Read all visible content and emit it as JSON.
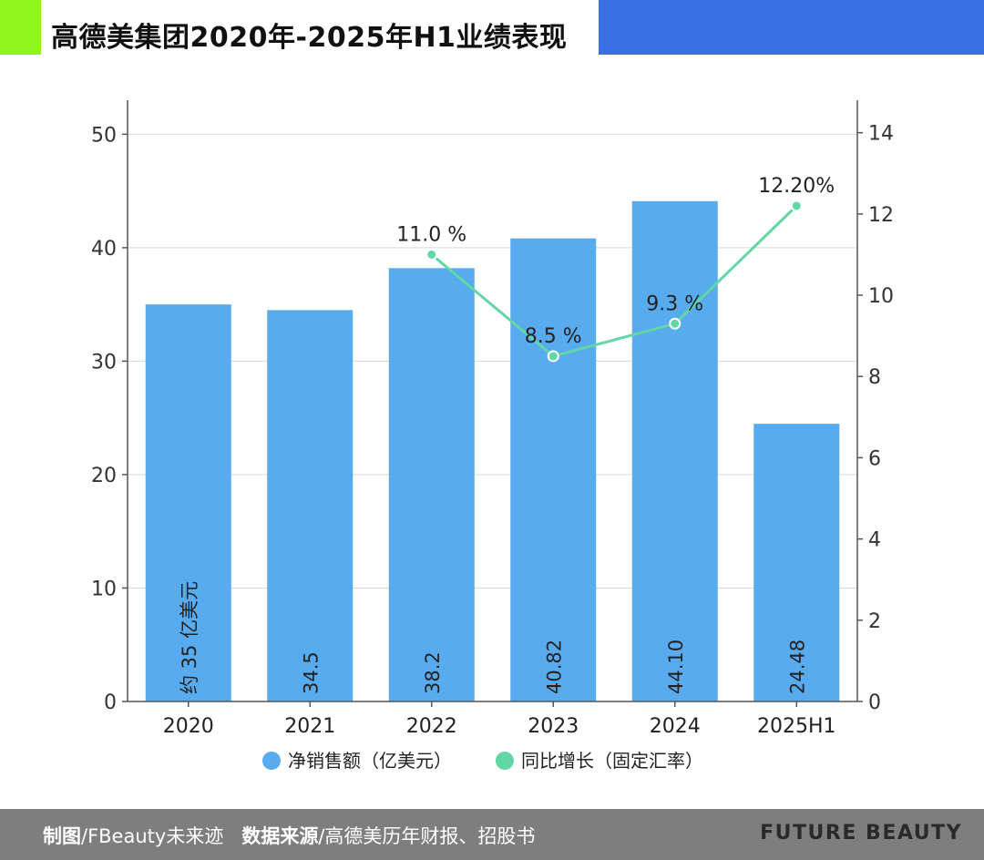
{
  "title": "高德美集团2020年-2025年H1业绩表现",
  "colors": {
    "bar": "#59ABF0",
    "line": "#62D6A4",
    "grid": "#D9D9D9",
    "axis": "#555555",
    "accent_green": "#8EF51E",
    "accent_blue": "#3B6FE4",
    "footer_bg": "#7E7E7E"
  },
  "chart_data": {
    "type": "bar",
    "categories": [
      "2020",
      "2021",
      "2022",
      "2023",
      "2024",
      "2025H1"
    ],
    "series": [
      {
        "name": "净销售额（亿美元）",
        "kind": "bar",
        "axis": "left",
        "values": [
          35,
          34.5,
          38.2,
          40.82,
          44.1,
          24.48
        ],
        "labels": [
          "约 35 亿美元",
          "34.5",
          "38.2",
          "40.82",
          "44.10",
          "24.48"
        ]
      },
      {
        "name": "同比增长（固定汇率）",
        "kind": "line",
        "axis": "right",
        "x": [
          "2022",
          "2023",
          "2024",
          "2025H1"
        ],
        "values": [
          11.0,
          8.5,
          9.3,
          12.2
        ],
        "labels": [
          "11.0 %",
          "8.5 %",
          "9.3 %",
          "12.20%"
        ]
      }
    ],
    "y_left": {
      "min": 0,
      "max": 53,
      "ticks": [
        0,
        10,
        20,
        30,
        40,
        50
      ]
    },
    "y_right": {
      "min": 0,
      "max": 14.8,
      "ticks": [
        0,
        2,
        4,
        6,
        8,
        10,
        12,
        14
      ]
    },
    "grid": true,
    "legend_position": "bottom"
  },
  "footer": {
    "maker_label": "制图",
    "maker_value": "/FBeauty未来迹",
    "source_label": "数据来源",
    "source_value": "/高德美历年财报、招股书",
    "brand": "FUTURE BEAUTY"
  }
}
